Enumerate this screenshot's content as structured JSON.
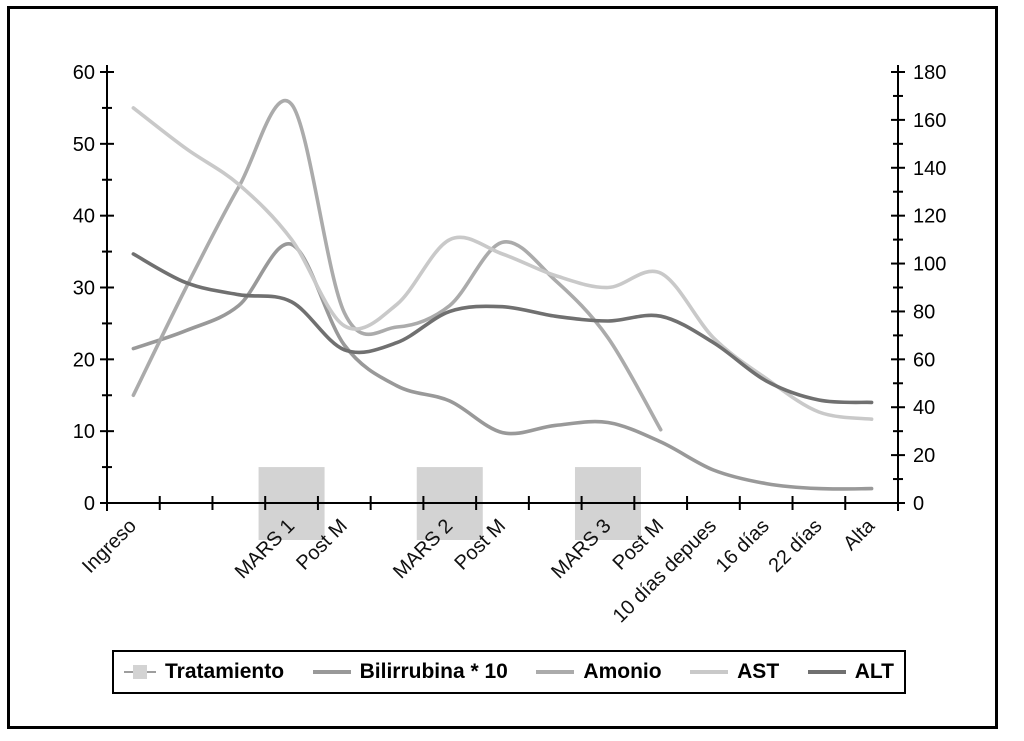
{
  "figure": {
    "background": "#ffffff",
    "frame_border_color": "#000000",
    "axis_color": "#000000",
    "tick_label_color": "#000000"
  },
  "chart_data": {
    "type": "combo-bar-line",
    "grid": "off",
    "legend_position": "bottom",
    "categories": [
      "Ingreso",
      "",
      "",
      "MARS 1",
      "Post M",
      "",
      "MARS 2",
      "Post M",
      "",
      "MARS 3",
      "Post M",
      "10 días depues",
      "16 días",
      "22 días",
      "Alta"
    ],
    "left_axis": {
      "min": 0,
      "max": 60,
      "major_step": 10,
      "minor_step": 5,
      "tick_labels": [
        0,
        10,
        20,
        30,
        40,
        50,
        60
      ]
    },
    "right_axis": {
      "min": 0,
      "max": 180,
      "major_step": 20,
      "minor_step": 10,
      "tick_labels": [
        0,
        20,
        40,
        60,
        80,
        100,
        120,
        140,
        160,
        180
      ]
    },
    "series": [
      {
        "name": "Tratamiento",
        "type": "bar",
        "axis": "left",
        "color": "#d3d3d3",
        "legend_line_color": "#9e9e9e",
        "values": [
          null,
          null,
          null,
          5,
          null,
          null,
          5,
          null,
          null,
          5,
          null,
          null,
          null,
          null,
          null
        ]
      },
      {
        "name": "Bilirrubina * 10",
        "type": "line",
        "axis": "left",
        "color": "#999999",
        "values": [
          21.5,
          24,
          27.5,
          36,
          22,
          16.3,
          14.2,
          9.8,
          10.8,
          11.2,
          8.5,
          4.6,
          2.7,
          2,
          2
        ]
      },
      {
        "name": "Amonio",
        "type": "line",
        "axis": "left",
        "color": "#ababab",
        "values": [
          15,
          30,
          44,
          55.5,
          26.5,
          24.5,
          27.5,
          36.3,
          31,
          23,
          10.2,
          null,
          null,
          null,
          null
        ]
      },
      {
        "name": "AST",
        "type": "line",
        "axis": "right",
        "color": "#c9c9c9",
        "values": [
          165,
          148,
          133,
          110,
          74,
          83,
          110,
          104,
          95,
          90,
          96,
          69,
          52,
          38,
          35
        ]
      },
      {
        "name": "ALT",
        "type": "line",
        "axis": "right",
        "color": "#707070",
        "values": [
          104,
          92,
          87,
          84,
          64,
          67,
          80,
          82,
          78,
          76,
          78,
          67,
          51,
          43,
          42
        ]
      }
    ]
  }
}
